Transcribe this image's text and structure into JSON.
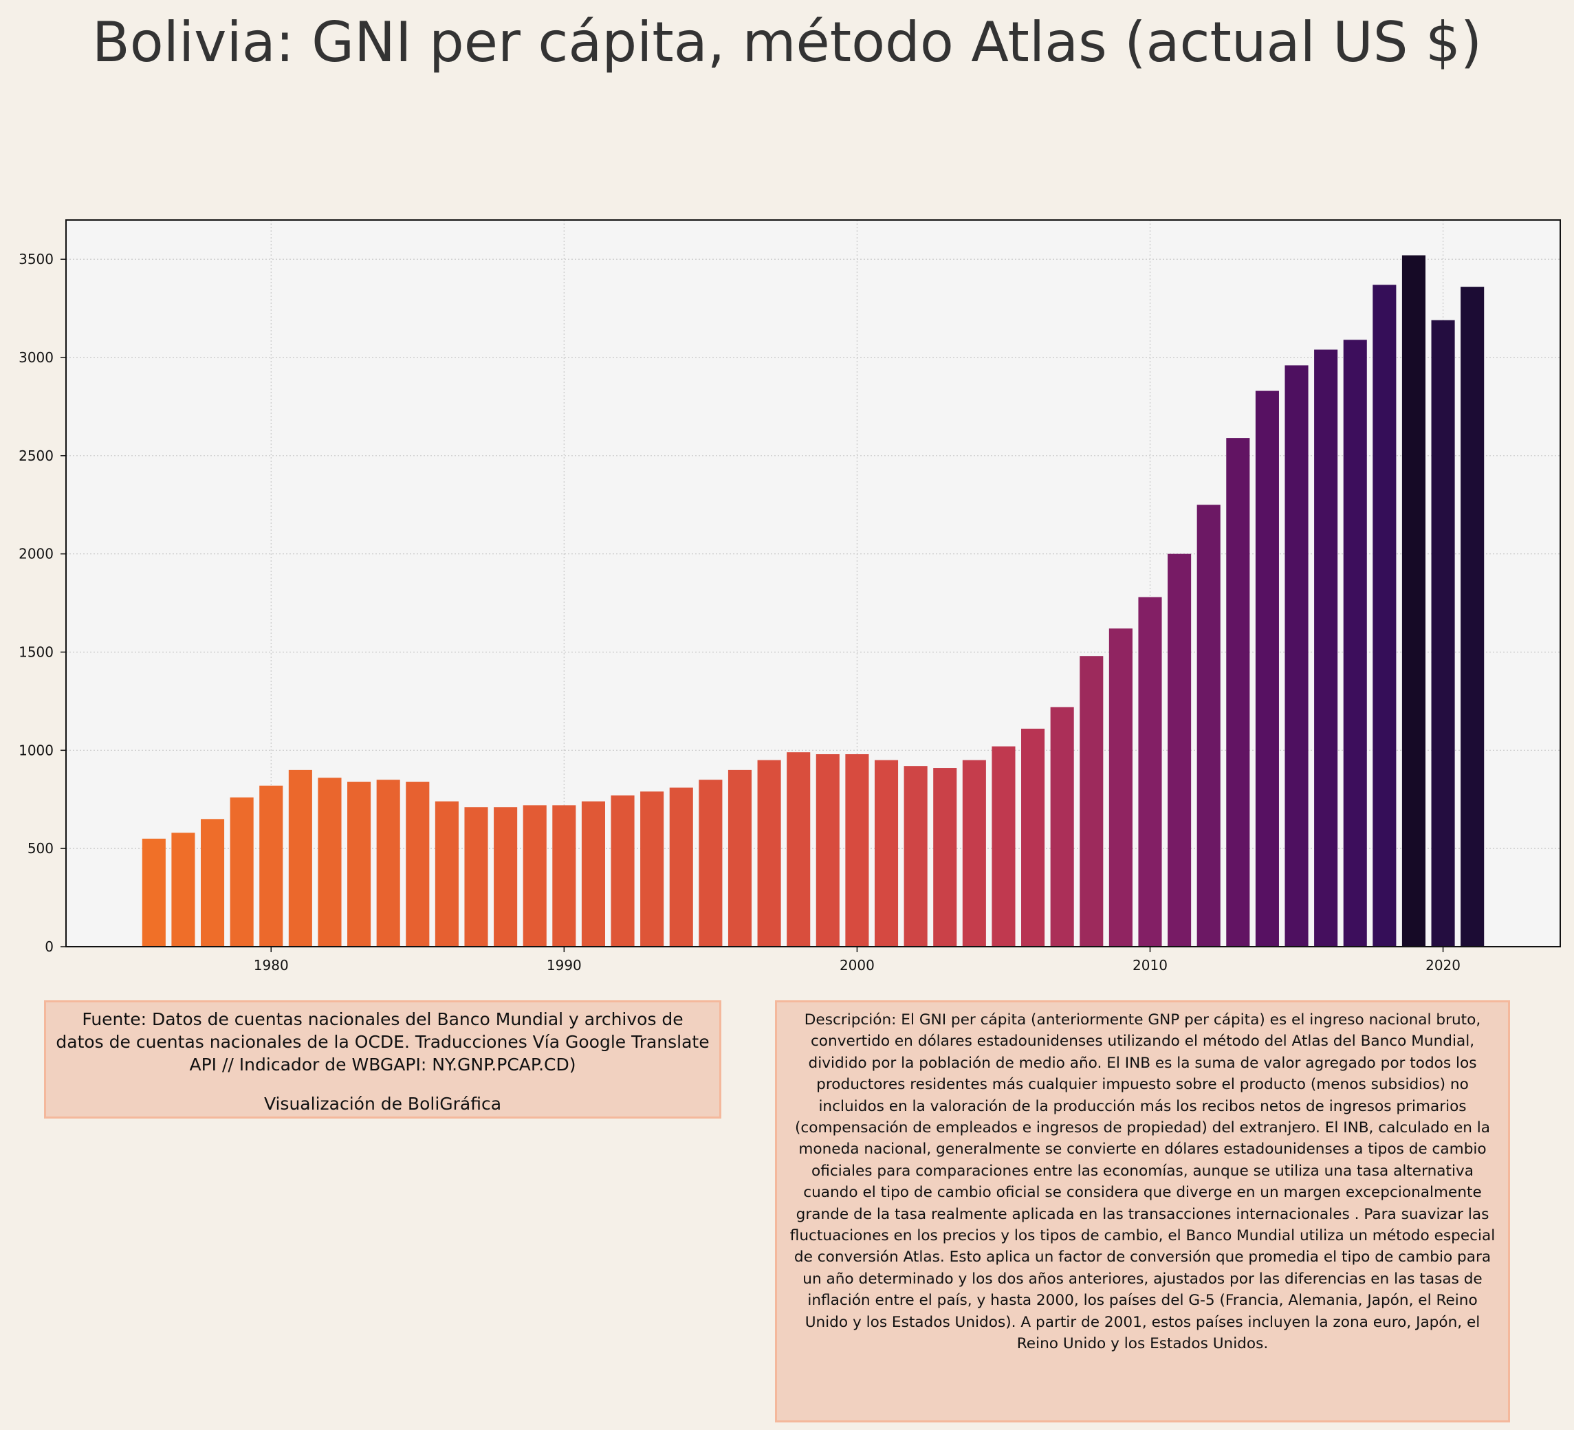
{
  "title": "Bolivia:  GNI per cápita, método Atlas (actual US $)",
  "source_text": "Fuente: Datos de cuentas nacionales del Banco Mundial y archivos de datos de cuentas nacionales de la OCDE. Traducciones Vía Google Translate API // Indicador de WBGAPI: NY.GNP.PCAP.CD)",
  "credit_text": "Visualización de BoliGráfica",
  "description_text": "Descripción: El GNI per cápita (anteriormente GNP per cápita) es el ingreso nacional bruto, convertido en dólares estadounidenses utilizando el método del Atlas del Banco Mundial, dividido por la población de medio año. El INB es la suma de valor agregado por todos los productores residentes más cualquier impuesto sobre el producto (menos subsidios) no incluidos en la valoración de la producción más los recibos netos de ingresos primarios (compensación de empleados e ingresos de propiedad) del extranjero. El INB, calculado en la moneda nacional, generalmente se convierte en dólares estadounidenses a tipos de cambio oficiales para comparaciones entre las economías, aunque se utiliza una tasa alternativa cuando el tipo de cambio oficial se considera que diverge en un margen excepcionalmente grande de la tasa realmente aplicada en las transacciones internacionales . Para suavizar las fluctuaciones en los precios y los tipos de cambio, el Banco Mundial utiliza un método especial de conversión Atlas. Esto aplica un factor de conversión que promedia el tipo de cambio para un año determinado y los dos años anteriores, ajustados por las diferencias en las tasas de inflación entre el país, y hasta 2000, los países del G-5 (Francia, Alemania, Japón, el Reino Unido y los Estados Unidos). A partir de 2001, estos países incluyen la zona euro, Japón, el Reino Unido y los Estados Unidos.",
  "colors": {
    "background": "#f5f0e8",
    "plot_background": "#f5f5f5",
    "note_box_fill": "#f1d1c0",
    "note_box_border": "#f4b89c",
    "palette": "inferno-like gradient from orange to dark purple"
  },
  "chart_data": {
    "type": "bar",
    "title": "Bolivia:  GNI per cápita, método Atlas (actual US $)",
    "xlabel": "",
    "ylabel": "",
    "x": [
      1976,
      1977,
      1978,
      1979,
      1980,
      1981,
      1982,
      1983,
      1984,
      1985,
      1986,
      1987,
      1988,
      1989,
      1990,
      1991,
      1992,
      1993,
      1994,
      1995,
      1996,
      1997,
      1998,
      1999,
      2000,
      2001,
      2002,
      2003,
      2004,
      2005,
      2006,
      2007,
      2008,
      2009,
      2010,
      2011,
      2012,
      2013,
      2014,
      2015,
      2016,
      2017,
      2018,
      2019,
      2020,
      2021
    ],
    "values": [
      550,
      580,
      650,
      760,
      820,
      900,
      860,
      840,
      850,
      840,
      740,
      710,
      710,
      720,
      720,
      740,
      770,
      790,
      810,
      850,
      900,
      950,
      990,
      980,
      980,
      950,
      920,
      910,
      950,
      1020,
      1110,
      1220,
      1480,
      1620,
      1780,
      2000,
      2250,
      2590,
      2830,
      2960,
      3040,
      3090,
      3370,
      3520,
      3190,
      3360
    ],
    "xlim": [
      1973,
      2024
    ],
    "ylim": [
      0,
      3700
    ],
    "x_ticks": [
      "1980",
      "1990",
      "2000",
      "2010",
      "2020"
    ],
    "y_ticks": [
      "0",
      "500",
      "1000",
      "1500",
      "2000",
      "2500",
      "3000",
      "3500"
    ],
    "grid": true
  }
}
